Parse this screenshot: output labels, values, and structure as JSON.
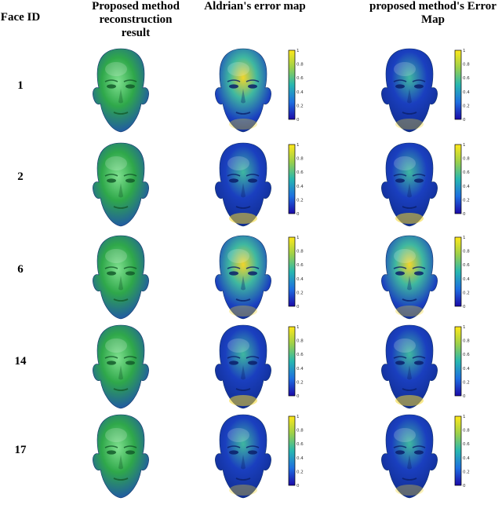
{
  "headers": {
    "face_id": "Face ID",
    "proposed_reconstruction": [
      "Proposed method",
      "reconstruction",
      "result"
    ],
    "aldrian_error": "Aldrian's error map",
    "proposed_error": [
      "proposed method's Error",
      "Map"
    ]
  },
  "rows": [
    {
      "id": "1"
    },
    {
      "id": "2"
    },
    {
      "id": "6"
    },
    {
      "id": "14"
    },
    {
      "id": "17"
    }
  ],
  "colors": {
    "reconstruction_face": "#2fa84a",
    "error_low": "#1a3fbf",
    "error_mid": "#3fb8a0",
    "error_high": "#f2d52a",
    "colorbar": [
      "#1b0aa8",
      "#1e6fe0",
      "#27b7b0",
      "#9cd04a",
      "#ffe81a"
    ]
  },
  "colorbar_ticks": [
    "0",
    "0.2",
    "0.4",
    "0.6",
    "0.8",
    "1"
  ]
}
